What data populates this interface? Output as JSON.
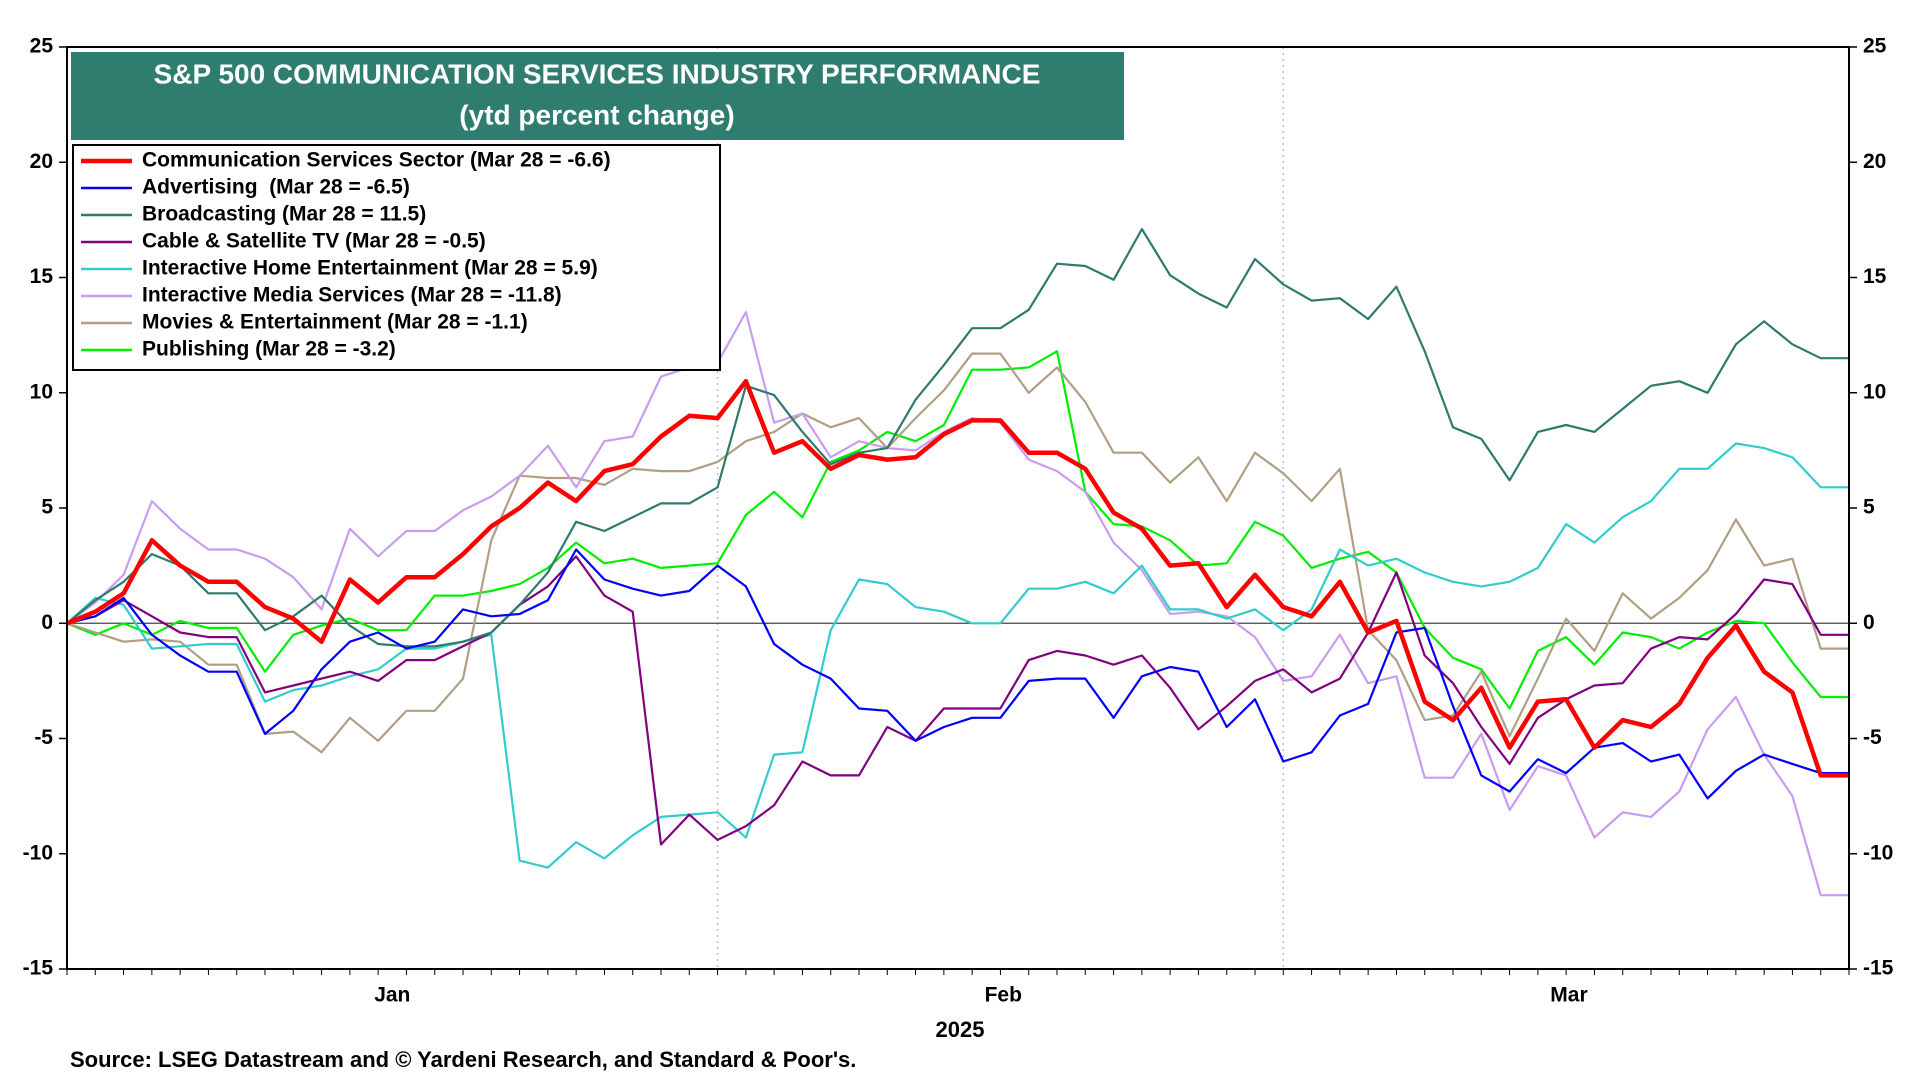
{
  "chart_data": {
    "type": "line",
    "title": "S&P 500 COMMUNICATION SERVICES INDUSTRY PERFORMANCE",
    "subtitle": "(ytd percent change)",
    "xlabel": "2025",
    "source": "Source: LSEG Datastream and © Yardeni Research, and Standard & Poor's.",
    "categories": [
      null,
      null,
      null,
      null,
      null,
      null,
      null,
      null,
      null,
      null,
      null,
      null,
      null,
      null,
      null,
      null,
      null,
      null,
      null,
      null,
      null,
      null,
      null,
      null,
      null,
      null,
      null,
      null,
      null,
      null,
      null,
      null,
      null,
      null,
      null,
      null,
      null,
      null,
      null,
      null,
      null,
      null,
      null,
      null,
      null,
      null,
      null,
      null,
      null,
      null,
      null,
      null,
      null,
      null,
      null,
      null,
      null,
      null,
      null,
      null,
      null,
      null,
      null,
      null
    ],
    "xticks": [
      {
        "value": 11.5,
        "label": "Jan"
      },
      {
        "value": 33.1,
        "label": "Feb"
      },
      {
        "value": 53.1,
        "label": "Mar"
      }
    ],
    "xgrid": [
      23,
      43
    ],
    "ylim": [
      -15,
      25
    ],
    "yticks": [
      -15,
      -10,
      -5,
      0,
      5,
      10,
      15,
      20,
      25
    ],
    "series": [
      {
        "name": "Communication Services Sector (Mar 28 = -6.6)",
        "color": "#ff0000",
        "values": [
          0,
          0.5,
          1.3,
          3.6,
          2.5,
          1.8,
          1.8,
          0.7,
          0.2,
          -0.8,
          1.9,
          0.9,
          2.0,
          2.0,
          3.0,
          4.2,
          5.0,
          6.1,
          5.3,
          6.6,
          6.9,
          8.1,
          9.0,
          8.9,
          10.5,
          7.4,
          7.9,
          6.7,
          7.3,
          7.1,
          7.2,
          8.2,
          8.8,
          8.8,
          7.4,
          7.4,
          6.7,
          4.8,
          4.1,
          2.5,
          2.6,
          0.7,
          2.1,
          0.7,
          0.3,
          1.8,
          -0.4,
          0.1,
          -3.4,
          -4.2,
          -2.8,
          -5.4,
          -3.4,
          -3.3,
          -5.4,
          -4.2,
          -4.5,
          -3.5,
          -1.5,
          -0.1,
          -2.1,
          -3.0,
          -6.6,
          -6.6
        ]
      },
      {
        "name": "Advertising  (Mar 28 = -6.5)",
        "color": "#0000ff",
        "values": [
          0,
          0.3,
          1.1,
          -0.5,
          -1.4,
          -2.1,
          -2.1,
          -4.8,
          -3.8,
          -2.0,
          -0.8,
          -0.4,
          -1.1,
          -0.8,
          0.6,
          0.3,
          0.4,
          1.0,
          3.2,
          1.9,
          1.5,
          1.2,
          1.4,
          2.5,
          1.6,
          -0.9,
          -1.8,
          -2.4,
          -3.7,
          -3.8,
          -5.1,
          -4.5,
          -4.1,
          -4.1,
          -2.5,
          -2.4,
          -2.4,
          -4.1,
          -2.3,
          -1.9,
          -2.1,
          -4.5,
          -3.3,
          -6.0,
          -5.6,
          -4.0,
          -3.5,
          -0.4,
          -0.2,
          -3.6,
          -6.6,
          -7.3,
          -5.9,
          -6.5,
          -5.4,
          -5.2,
          -6.0,
          -5.7,
          -7.6,
          -6.4,
          -5.7,
          -6.1,
          -6.5,
          -6.5
        ]
      },
      {
        "name": "Broadcasting (Mar 28 = 11.5)",
        "color": "#2e7b6e",
        "values": [
          0,
          1.0,
          1.8,
          3.0,
          2.5,
          1.3,
          1.3,
          -0.3,
          0.3,
          1.2,
          -0.1,
          -0.9,
          -1.0,
          -1.0,
          -0.8,
          -0.4,
          0.8,
          2.2,
          4.4,
          4.0,
          4.6,
          5.2,
          5.2,
          5.9,
          10.3,
          9.9,
          8.3,
          6.9,
          7.4,
          7.6,
          9.7,
          11.2,
          12.8,
          12.8,
          13.6,
          15.6,
          15.5,
          14.9,
          17.1,
          15.1,
          14.3,
          13.7,
          15.8,
          14.7,
          14.0,
          14.1,
          13.2,
          14.6,
          11.8,
          8.5,
          8.0,
          6.2,
          8.3,
          8.6,
          8.3,
          9.3,
          10.3,
          10.5,
          10.0,
          12.1,
          13.1,
          12.1,
          11.5,
          11.5
        ]
      },
      {
        "name": "Cable & Satellite TV (Mar 28 = -0.5)",
        "color": "#800080",
        "values": [
          0,
          0.3,
          1.0,
          0.3,
          -0.4,
          -0.6,
          -0.6,
          -3.0,
          -2.7,
          -2.4,
          -2.1,
          -2.5,
          -1.6,
          -1.6,
          -1.0,
          -0.4,
          0.8,
          1.6,
          2.9,
          1.2,
          0.5,
          -9.6,
          -8.3,
          -9.4,
          -8.8,
          -7.9,
          -6.0,
          -6.6,
          -6.6,
          -4.5,
          -5.1,
          -3.7,
          -3.7,
          -3.7,
          -1.6,
          -1.2,
          -1.4,
          -1.8,
          -1.4,
          -2.8,
          -4.6,
          -3.6,
          -2.5,
          -2.0,
          -3.0,
          -2.4,
          -0.4,
          2.2,
          -1.4,
          -2.6,
          -4.5,
          -6.1,
          -4.1,
          -3.3,
          -2.7,
          -2.6,
          -1.1,
          -0.6,
          -0.7,
          0.4,
          1.9,
          1.7,
          -0.5,
          -0.5
        ]
      },
      {
        "name": "Interactive Home Entertainment (Mar 28 = 5.9)",
        "color": "#33cccc",
        "values": [
          0,
          1.1,
          0.8,
          -1.1,
          -1.0,
          -0.9,
          -0.9,
          -3.4,
          -2.9,
          -2.7,
          -2.3,
          -2.0,
          -1.1,
          -1.1,
          -0.8,
          -0.5,
          -10.3,
          -10.6,
          -9.5,
          -10.2,
          -9.2,
          -8.4,
          -8.3,
          -8.2,
          -9.3,
          -5.7,
          -5.6,
          -0.3,
          1.9,
          1.7,
          0.7,
          0.5,
          0.0,
          0.0,
          1.5,
          1.5,
          1.8,
          1.3,
          2.5,
          0.6,
          0.6,
          0.2,
          0.6,
          -0.3,
          0.6,
          3.2,
          2.5,
          2.8,
          2.2,
          1.8,
          1.6,
          1.8,
          2.4,
          4.3,
          3.5,
          4.6,
          5.3,
          6.7,
          6.7,
          7.8,
          7.6,
          7.2,
          5.9,
          5.9
        ]
      },
      {
        "name": "Interactive Media Services (Mar 28 = -11.8)",
        "color": "#c99cf0",
        "values": [
          0,
          0.9,
          2.1,
          5.3,
          4.1,
          3.2,
          3.2,
          2.8,
          2.0,
          0.6,
          4.1,
          2.9,
          4.0,
          4.0,
          4.9,
          5.5,
          6.4,
          7.7,
          5.9,
          7.9,
          8.1,
          10.7,
          11.1,
          11.3,
          13.5,
          8.7,
          9.1,
          7.2,
          7.9,
          7.6,
          7.5,
          8.3,
          8.9,
          8.7,
          7.1,
          6.6,
          5.7,
          3.5,
          2.3,
          0.4,
          0.5,
          0.3,
          -0.6,
          -2.5,
          -2.3,
          -0.5,
          -2.6,
          -2.3,
          -6.7,
          -6.7,
          -4.8,
          -8.1,
          -6.2,
          -6.6,
          -9.3,
          -8.2,
          -8.4,
          -7.3,
          -4.6,
          -3.2,
          -5.7,
          -7.5,
          -11.8,
          -11.8
        ]
      },
      {
        "name": "Movies & Entertainment (Mar 28 = -1.1)",
        "color": "#b09f84",
        "values": [
          0,
          -0.4,
          -0.8,
          -0.7,
          -0.8,
          -1.8,
          -1.8,
          -4.8,
          -4.7,
          -5.6,
          -4.1,
          -5.1,
          -3.8,
          -3.8,
          -2.4,
          3.6,
          6.4,
          6.3,
          6.3,
          6.0,
          6.7,
          6.6,
          6.6,
          7.0,
          7.9,
          8.3,
          9.1,
          8.5,
          8.9,
          7.6,
          8.9,
          10.1,
          11.7,
          11.7,
          10.0,
          11.1,
          9.6,
          7.4,
          7.4,
          6.1,
          7.2,
          5.3,
          7.4,
          6.5,
          5.3,
          6.7,
          -0.3,
          -1.6,
          -4.2,
          -4.0,
          -2.1,
          -4.9,
          -2.4,
          0.2,
          -1.2,
          1.3,
          0.2,
          1.1,
          2.3,
          4.5,
          2.5,
          2.8,
          -1.1,
          -1.1
        ]
      },
      {
        "name": "Publishing (Mar 28 = -3.2)",
        "color": "#00ee00",
        "values": [
          0,
          -0.5,
          0.0,
          -0.5,
          0.1,
          -0.2,
          -0.2,
          -2.1,
          -0.5,
          -0.1,
          0.2,
          -0.3,
          -0.3,
          1.2,
          1.2,
          1.4,
          1.7,
          2.4,
          3.5,
          2.6,
          2.8,
          2.4,
          2.5,
          2.6,
          4.7,
          5.7,
          4.6,
          7.0,
          7.5,
          8.3,
          7.9,
          8.6,
          11.0,
          11.0,
          11.1,
          11.8,
          5.7,
          4.3,
          4.2,
          3.6,
          2.5,
          2.6,
          4.4,
          3.8,
          2.4,
          2.8,
          3.1,
          2.2,
          -0.2,
          -1.5,
          -2.0,
          -3.7,
          -1.2,
          -0.6,
          -1.8,
          -0.4,
          -0.6,
          -1.1,
          -0.4,
          0.1,
          0.0,
          -1.7,
          -3.2,
          -3.2
        ]
      }
    ]
  }
}
